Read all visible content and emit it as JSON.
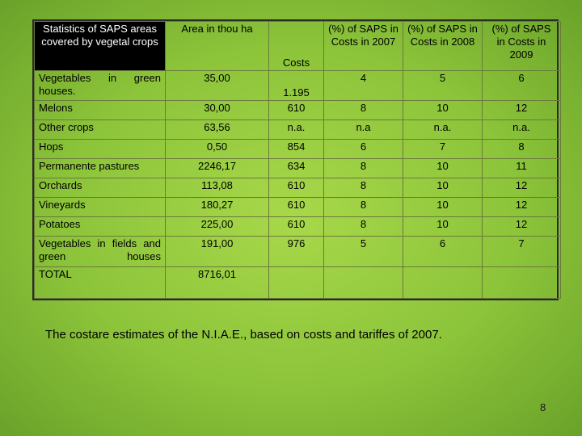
{
  "headers": [
    "Statistics of SAPS areas covered by vegetal crops",
    "Area in thou ha",
    "Costs",
    "(%) of SAPS in Costs in 2007",
    "(%) of SAPS in Costs in 2008",
    "(%) of SAPS in Costs in 2009"
  ],
  "rows": [
    {
      "label": "Vegetables in green houses.",
      "area": "35,00",
      "costs": "1.195",
      "p2007": "4",
      "p2008": "5",
      "p2009": "6"
    },
    {
      "label": "Melons",
      "area": "30,00",
      "costs": "610",
      "p2007": "8",
      "p2008": "10",
      "p2009": "12"
    },
    {
      "label": "Other crops",
      "area": "63,56",
      "costs": "n.a.",
      "p2007": "n.a",
      "p2008": "n.a.",
      "p2009": "n.a."
    },
    {
      "label": "Hops",
      "area": "0,50",
      "costs": "854",
      "p2007": "6",
      "p2008": "7",
      "p2009": "8"
    },
    {
      "label": "Permanente pastures",
      "area": "2246,17",
      "costs": "634",
      "p2007": "8",
      "p2008": "10",
      "p2009": "11"
    },
    {
      "label": "Orchards",
      "area": "113,08",
      "costs": "610",
      "p2007": "8",
      "p2008": "10",
      "p2009": "12"
    },
    {
      "label": "Vineyards",
      "area": "180,27",
      "costs": "610",
      "p2007": "8",
      "p2008": "10",
      "p2009": "12"
    },
    {
      "label": "Potatoes",
      "area": "225,00",
      "costs": "610",
      "p2007": "8",
      "p2008": "10",
      "p2009": "12"
    },
    {
      "label": "Vegetables in fields and green houses",
      "area": "191,00",
      "costs": "976",
      "p2007": "5",
      "p2008": "6",
      "p2009": "7"
    },
    {
      "label": "TOTAL",
      "area": "8716,01",
      "costs": "",
      "p2007": "",
      "p2008": "",
      "p2009": ""
    }
  ],
  "caption": "The costare estimates of the N.I.A.E., based on costs and tariffes of 2007.",
  "page_number": "8",
  "colors": {
    "background": "#8cc43a",
    "header_cell": "#000000"
  }
}
